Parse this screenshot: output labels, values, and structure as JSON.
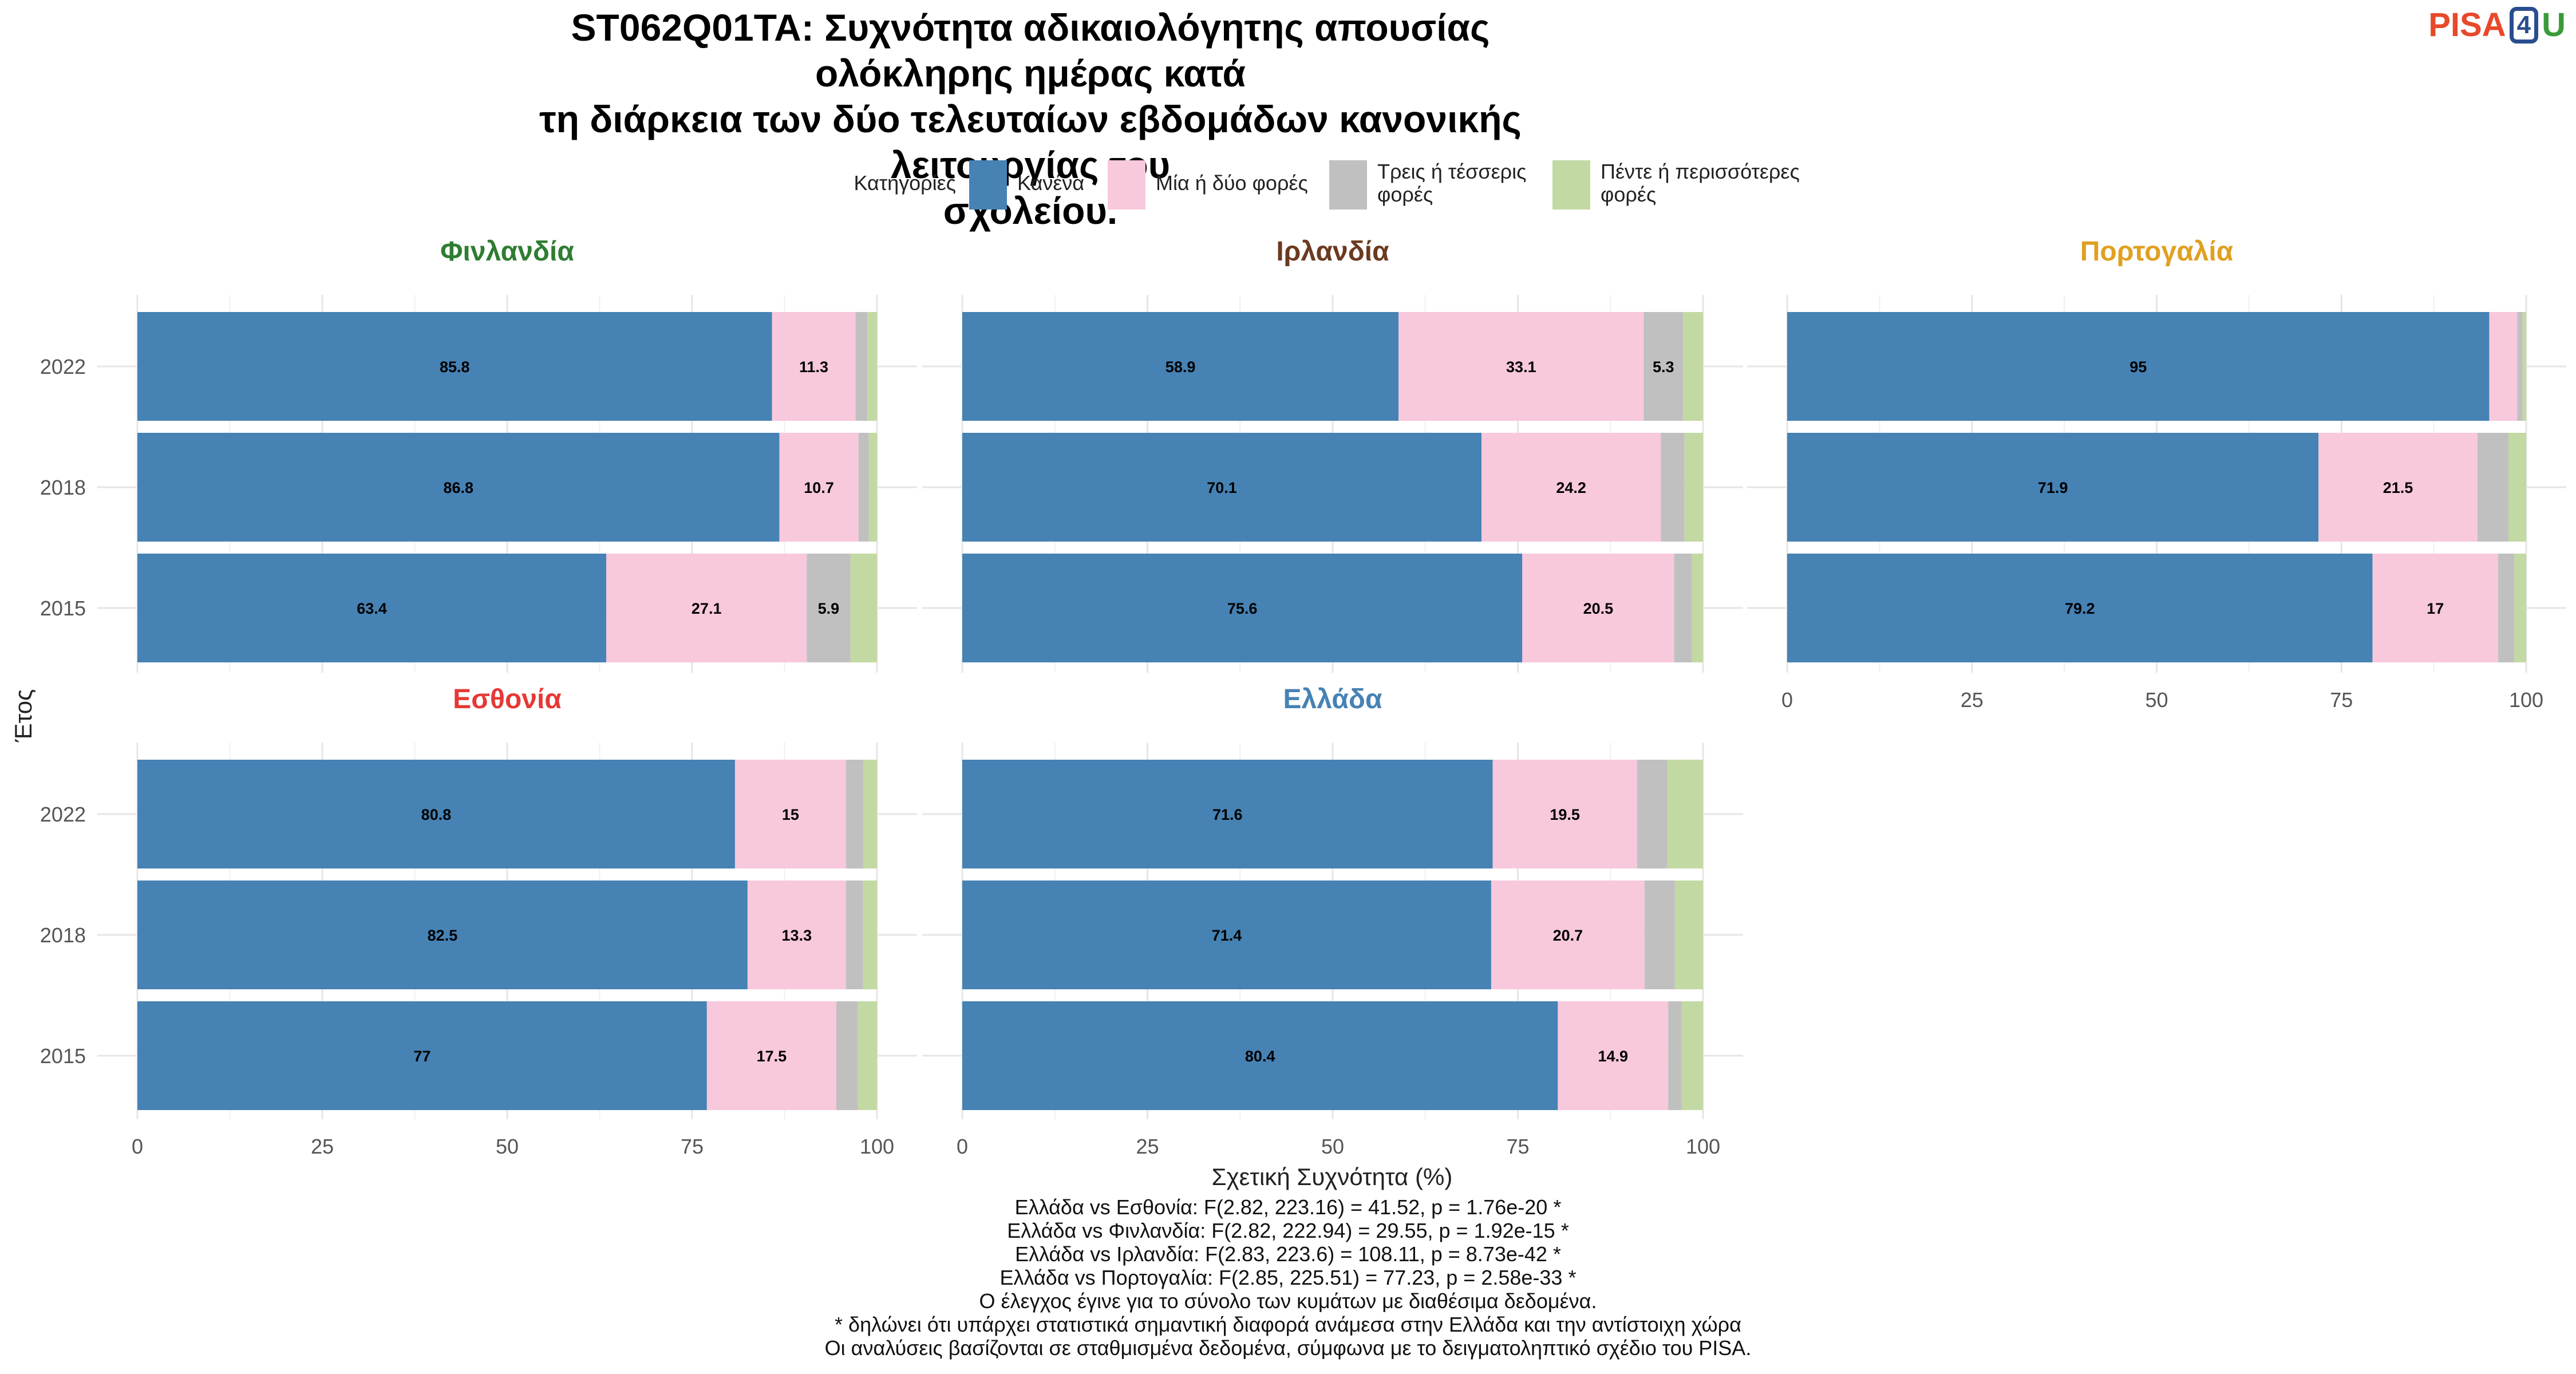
{
  "title_lines": [
    "ST062Q01TA: Συχνότητα αδικαιολόγητης απουσίας ολόκληρης ημέρας κατά",
    "τη διάρκεια των δύο τελευταίων εβδομάδων κανονικής λειτουργίας του",
    "σχολείου."
  ],
  "logo": {
    "pisa": "PISA",
    "four": "4",
    "u": "U"
  },
  "chart_data": {
    "type": "bar",
    "orientation": "horizontal-stacked",
    "legend_title": "Κατηγορίες",
    "legend_position": "top",
    "xlabel": "Σχετική Συχνότητα (%)",
    "ylabel": "Έτος",
    "xlim": [
      0,
      100
    ],
    "xticks": [
      0,
      25,
      50,
      75,
      100
    ],
    "grid": true,
    "years": [
      "2022",
      "2018",
      "2015"
    ],
    "series": [
      {
        "name": "Κανένα",
        "color": "#4682b4"
      },
      {
        "name": "Μία ή δύο φορές",
        "color": "#f8c8dc"
      },
      {
        "name": "Τρεις ή τέσσερις φορές",
        "name_lines": [
          "Τρεις ή τέσσερις",
          "φορές"
        ],
        "color": "#c0c0c0"
      },
      {
        "name": "Πέντε ή περισσότερες φορές",
        "name_lines": [
          "Πέντε ή περισσότερες",
          "φορές"
        ],
        "color": "#c3d9a3"
      }
    ],
    "panels": [
      {
        "country": "Φινλανδία",
        "color": "#2e7d32",
        "values": [
          [
            85.8,
            11.3,
            1.6,
            1.3
          ],
          [
            86.8,
            10.7,
            1.4,
            1.1
          ],
          [
            63.4,
            27.1,
            5.9,
            3.6
          ]
        ]
      },
      {
        "country": "Ιρλανδία",
        "color": "#6b3a1f",
        "values": [
          [
            58.9,
            33.1,
            5.3,
            2.7
          ],
          [
            70.1,
            24.2,
            3.2,
            2.5
          ],
          [
            75.6,
            20.5,
            2.4,
            1.5
          ]
        ]
      },
      {
        "country": "Πορτογαλία",
        "color": "#e0a020",
        "values": [
          [
            95.0,
            3.8,
            0.7,
            0.5
          ],
          [
            71.9,
            21.5,
            4.2,
            2.4
          ],
          [
            79.2,
            17.0,
            2.2,
            1.6
          ]
        ]
      },
      {
        "country": "Εσθονία",
        "color": "#e53935",
        "values": [
          [
            80.8,
            15.0,
            2.4,
            1.8
          ],
          [
            82.5,
            13.3,
            2.3,
            1.9
          ],
          [
            77.0,
            17.5,
            2.9,
            2.6
          ]
        ]
      },
      {
        "country": "Ελλάδα",
        "color": "#4682b4",
        "values": [
          [
            71.6,
            19.5,
            4.1,
            4.8
          ],
          [
            71.4,
            20.7,
            4.1,
            3.8
          ],
          [
            80.4,
            14.9,
            1.8,
            2.9
          ]
        ]
      }
    ],
    "label_threshold": 5
  },
  "notes": [
    "Ελλάδα vs Εσθονία: F(2.82, 223.16) = 41.52, p = 1.76e-20 *",
    "Ελλάδα vs Φινλανδία: F(2.82, 222.94) = 29.55, p = 1.92e-15 *",
    "Ελλάδα vs Ιρλανδία: F(2.83, 223.6) = 108.11, p = 8.73e-42 *",
    "Ελλάδα vs Πορτογαλία: F(2.85, 225.51) = 77.23, p = 2.58e-33 *",
    "Ο έλεγχος έγινε για το σύνολο των κυμάτων με διαθέσιμα δεδομένα.",
    "* δηλώνει ότι υπάρχει στατιστικά σημαντική διαφορά ανάμεσα στην Ελλάδα και την αντίστοιχη χώρα",
    "Οι αναλύσεις βασίζονται σε σταθμισμένα δεδομένα, σύμφωνα με το δειγματοληπτικό σχέδιο του PISA."
  ]
}
